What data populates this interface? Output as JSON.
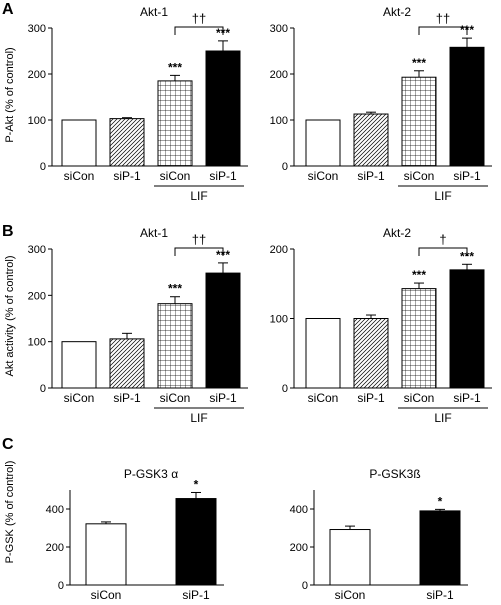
{
  "figure": {
    "panels": [
      {
        "letter": "A",
        "ylabel": "P-Akt (% of control)",
        "group_label": "LIF"
      },
      {
        "letter": "B",
        "ylabel": "Akt activity (% of control)",
        "group_label": "LIF"
      },
      {
        "letter": "C",
        "ylabel": "P-GSK (% of control)"
      }
    ]
  },
  "chart_data": [
    {
      "type": "bar",
      "panel": "A",
      "title": "Akt-1",
      "ylabel": "P-Akt (% of control)",
      "categories": [
        "siCon",
        "siP-1",
        "siCon",
        "siP-1"
      ],
      "group_label": "LIF",
      "group_spans": [
        2,
        3
      ],
      "values": [
        100,
        103,
        185,
        250
      ],
      "errors": [
        0,
        2,
        12,
        22
      ],
      "fills": [
        "white",
        "hatch",
        "grid",
        "black"
      ],
      "significance": [
        "",
        "",
        "***",
        "***"
      ],
      "bracket": {
        "from": 2,
        "to": 3,
        "label": "††"
      },
      "ylim": [
        0,
        300
      ],
      "yticks": [
        0,
        100,
        200,
        300
      ],
      "grid": false
    },
    {
      "type": "bar",
      "panel": "A",
      "title": "Akt-2",
      "ylabel": "",
      "categories": [
        "siCon",
        "siP-1",
        "siCon",
        "siP-1"
      ],
      "group_label": "LIF",
      "group_spans": [
        2,
        3
      ],
      "values": [
        100,
        113,
        193,
        258
      ],
      "errors": [
        0,
        4,
        14,
        20
      ],
      "fills": [
        "white",
        "hatch",
        "grid",
        "black"
      ],
      "significance": [
        "",
        "",
        "***",
        "***"
      ],
      "bracket": {
        "from": 2,
        "to": 3,
        "label": "††"
      },
      "ylim": [
        0,
        300
      ],
      "yticks": [
        0,
        100,
        200,
        300
      ],
      "grid": false
    },
    {
      "type": "bar",
      "panel": "B",
      "title": "Akt-1",
      "ylabel": "Akt activity (% of control)",
      "categories": [
        "siCon",
        "siP-1",
        "siCon",
        "siP-1"
      ],
      "group_label": "LIF",
      "group_spans": [
        2,
        3
      ],
      "values": [
        100,
        106,
        182,
        248
      ],
      "errors": [
        0,
        12,
        15,
        22
      ],
      "fills": [
        "white",
        "hatch",
        "grid",
        "black"
      ],
      "significance": [
        "",
        "",
        "***",
        "***"
      ],
      "bracket": {
        "from": 2,
        "to": 3,
        "label": "††"
      },
      "ylim": [
        0,
        300
      ],
      "yticks": [
        0,
        100,
        200,
        300
      ],
      "grid": false
    },
    {
      "type": "bar",
      "panel": "B",
      "title": "Akt-2",
      "ylabel": "",
      "categories": [
        "siCon",
        "siP-1",
        "siCon",
        "siP-1"
      ],
      "group_label": "LIF",
      "group_spans": [
        2,
        3
      ],
      "values": [
        100,
        100,
        143,
        170
      ],
      "errors": [
        0,
        5,
        8,
        8
      ],
      "fills": [
        "white",
        "hatch",
        "grid",
        "black"
      ],
      "significance": [
        "",
        "",
        "***",
        "***"
      ],
      "bracket": {
        "from": 2,
        "to": 3,
        "label": "†"
      },
      "ylim": [
        0,
        200
      ],
      "yticks": [
        0,
        100,
        200
      ],
      "grid": false
    },
    {
      "type": "bar",
      "panel": "C",
      "title": "P-GSK3 α",
      "ylabel": "P-GSK (% of control)",
      "categories": [
        "siCon",
        "siP-1"
      ],
      "values": [
        322,
        455
      ],
      "errors": [
        10,
        32
      ],
      "fills": [
        "white",
        "black"
      ],
      "significance": [
        "",
        "*"
      ],
      "ylim": [
        0,
        500
      ],
      "yticks": [
        0,
        200,
        400
      ],
      "grid": false
    },
    {
      "type": "bar",
      "panel": "C",
      "title": "P-GSK3ß",
      "ylabel": "",
      "categories": [
        "siCon",
        "siP-1"
      ],
      "values": [
        292,
        390
      ],
      "errors": [
        18,
        8
      ],
      "fills": [
        "white",
        "black"
      ],
      "significance": [
        "",
        "*"
      ],
      "ylim": [
        0,
        500
      ],
      "yticks": [
        0,
        200,
        400
      ],
      "grid": false
    }
  ]
}
